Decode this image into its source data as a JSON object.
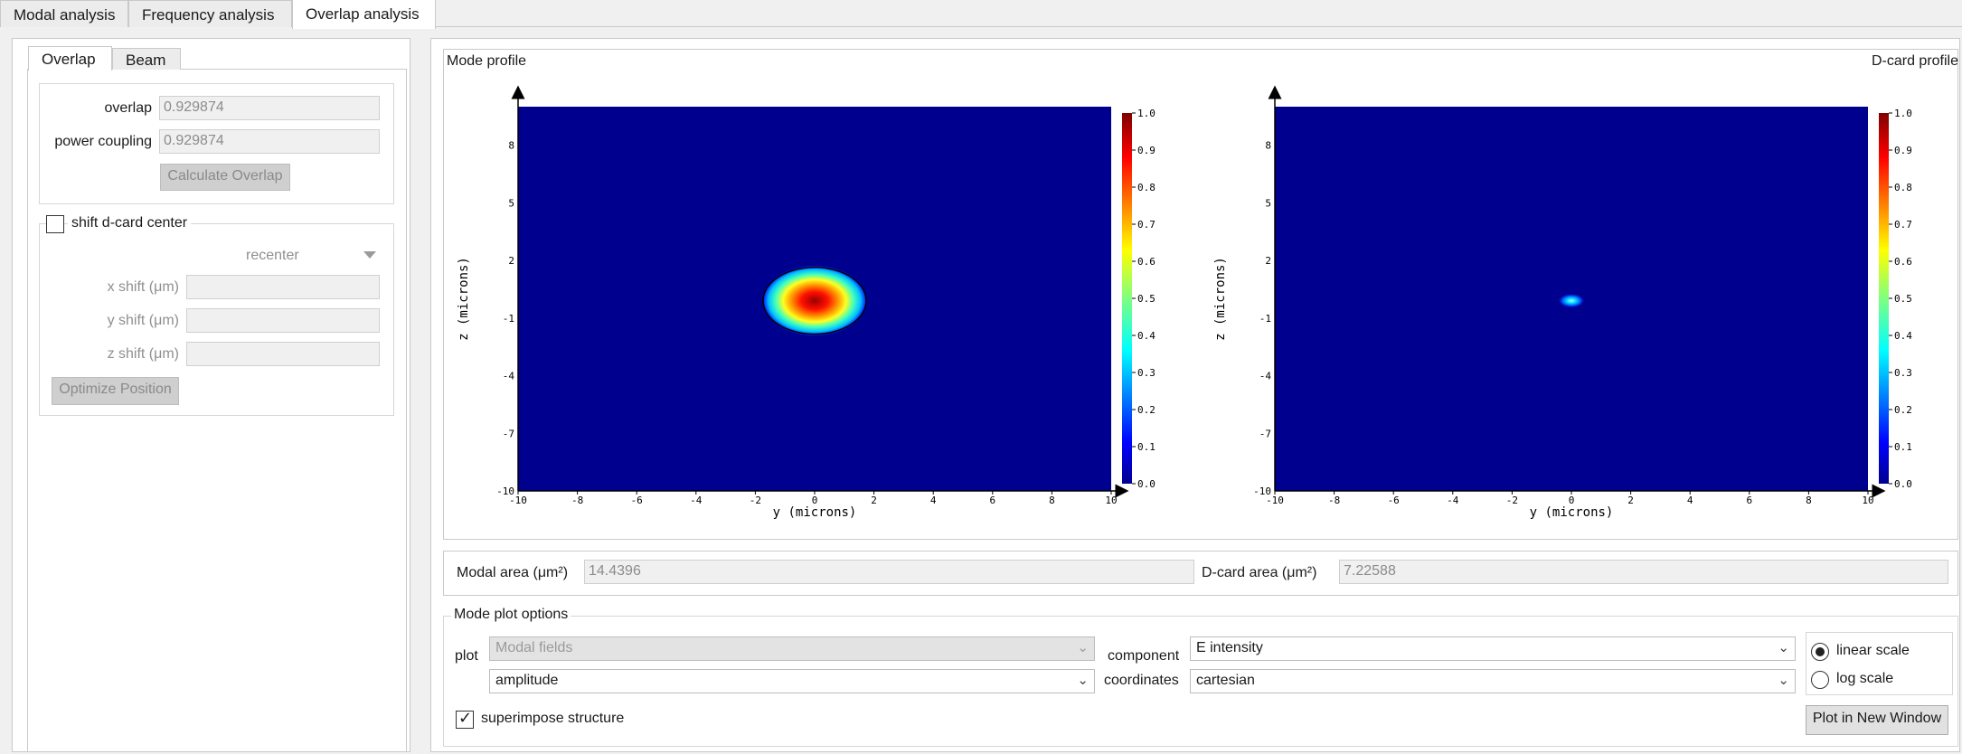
{
  "tabs": [
    "Modal analysis",
    "Frequency analysis",
    "Overlap analysis"
  ],
  "left": {
    "subtabs": [
      "Overlap",
      "Beam"
    ],
    "overlap_label": "overlap",
    "overlap_value": "0.929874",
    "power_coupling_label": "power coupling",
    "power_coupling_value": "0.929874",
    "calculate_button": "Calculate Overlap",
    "shift_label": "shift d-card center",
    "recenter_label": "recenter",
    "x_shift_label": "x shift (μm)",
    "y_shift_label": "y shift (μm)",
    "z_shift_label": "z shift (μm)",
    "optimize_button": "Optimize Position"
  },
  "plots": {
    "mode_profile_title": "Mode profile",
    "dcard_title": "D-card profile",
    "xlabel": "y (microns)",
    "ylabel": "z (microns)",
    "x_ticks": [
      "-10",
      "-8",
      "-6",
      "-4",
      "-2",
      "0",
      "2",
      "4",
      "6",
      "8",
      "10"
    ],
    "y_ticks": [
      "8",
      "5",
      "2",
      "-1",
      "-4",
      "-7",
      "-10"
    ],
    "colorbar_ticks": [
      "1.0",
      "0.9",
      "0.8",
      "0.7",
      "0.6",
      "0.5",
      "0.4",
      "0.3",
      "0.2",
      "0.1",
      "0.0"
    ]
  },
  "areas": {
    "modal_label": "Modal area (μm²)",
    "modal_value": "14.4396",
    "dcard_label": "D-card area (μm²)",
    "dcard_value": "7.22588"
  },
  "options": {
    "title": "Mode plot options",
    "plot_label": "plot",
    "plot_value": "Modal fields",
    "component_label": "component",
    "component_value": "E intensity",
    "amplitude_value": "amplitude",
    "coordinates_label": "coordinates",
    "coordinates_value": "cartesian",
    "linear_scale": "linear scale",
    "log_scale": "log scale",
    "superimpose_label": "superimpose structure",
    "plot_new_window": "Plot in New Window"
  },
  "colors": {
    "jet_background": "#00008f",
    "selected_tab": "#ffffff"
  }
}
